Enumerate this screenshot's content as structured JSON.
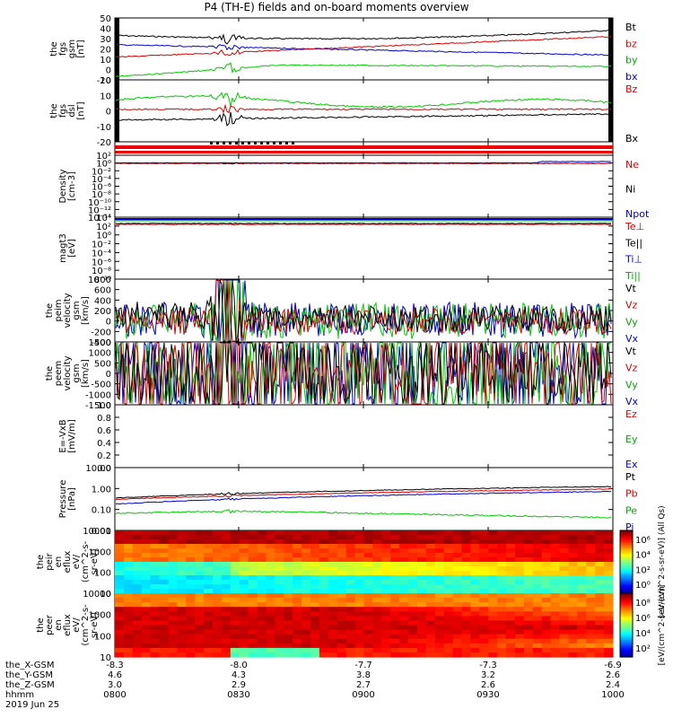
{
  "title": "P4 (TH-E) fields and on-board moments overview",
  "date_label": "2019 Jun 25",
  "time_axis": {
    "ticks": [
      "0800",
      "0830",
      "0900",
      "0930",
      "1000"
    ],
    "rows": [
      {
        "label": "the_X-GSM",
        "values": [
          "-8.3",
          "-8.0",
          "-7.7",
          "-7.3",
          "-6.9"
        ]
      },
      {
        "label": "the_Y-GSM",
        "values": [
          "4.6",
          "4.3",
          "3.8",
          "3.2",
          "2.6"
        ]
      },
      {
        "label": "the_Z-GSM",
        "values": [
          "3.0",
          "2.9",
          "2.7",
          "2.6",
          "2.4"
        ]
      },
      {
        "label": "hhmm",
        "values": [
          "0800",
          "0830",
          "0900",
          "0930",
          "1000"
        ]
      }
    ]
  },
  "colors": {
    "black": "#000000",
    "red": "#dd0000",
    "blue": "#0000cc",
    "green": "#00cc00"
  },
  "panels": [
    {
      "ylabel": [
        "the",
        "fgs",
        "gsm",
        "[nT]"
      ],
      "ticks": [
        "50",
        "40",
        "30",
        "20",
        "10",
        "0",
        "-10"
      ],
      "legend": [
        {
          "text": "Bt",
          "color": "#000000"
        },
        {
          "text": "bz",
          "color": "#dd0000"
        },
        {
          "text": "by",
          "color": "#00aa00"
        },
        {
          "text": "bx",
          "color": "#0000cc"
        }
      ]
    },
    {
      "ylabel": [
        "the",
        "fgs",
        "dsl",
        "[nT]"
      ],
      "ticks": [
        "20",
        "10",
        "0",
        "-10",
        "-20"
      ],
      "legend": [
        {
          "text": "Bz",
          "color": "#dd0000"
        },
        {
          "text": "Bx",
          "color": "#000000"
        }
      ]
    },
    {
      "ylabel": [
        "Density",
        "[cm-3]"
      ],
      "ticks": [
        "10²",
        "10⁰",
        "10⁻²",
        "10⁻⁴",
        "10⁻⁶",
        "10⁻⁸",
        "10⁻¹⁰",
        "10⁻¹²",
        "10⁻¹⁴"
      ],
      "legend": [
        {
          "text": "Ne",
          "color": "#dd0000"
        },
        {
          "text": "Ni",
          "color": "#000000"
        },
        {
          "text": "Npot",
          "color": "#0000cc"
        }
      ]
    },
    {
      "ylabel": [
        "magt3",
        "[eV]"
      ],
      "ticks": [
        "10⁴",
        "10²",
        "10⁰",
        "10⁻²",
        "10⁻⁴",
        "10⁻⁶",
        "10⁻⁸",
        "10⁻¹⁰"
      ],
      "legend": [
        {
          "text": "Te⊥",
          "color": "#dd0000"
        },
        {
          "text": "Te||",
          "color": "#000000"
        },
        {
          "text": "Ti⊥",
          "color": "#0000cc"
        },
        {
          "text": "Ti||",
          "color": "#00aa00"
        }
      ]
    },
    {
      "ylabel": [
        "the",
        "peim",
        "velocity",
        "gsm",
        "[km/s]"
      ],
      "ticks": [
        "800",
        "600",
        "400",
        "200",
        "0",
        "-200",
        "-400"
      ],
      "legend": [
        {
          "text": "Vt",
          "color": "#000000"
        },
        {
          "text": "Vz",
          "color": "#dd0000"
        },
        {
          "text": "Vy",
          "color": "#00aa00"
        },
        {
          "text": "Vx",
          "color": "#0000cc"
        }
      ]
    },
    {
      "ylabel": [
        "the",
        "peem",
        "velocity",
        "gsm",
        "[km/s]"
      ],
      "ticks": [
        "1500",
        "1000",
        "500",
        "0",
        "-500",
        "-1000",
        "-1500"
      ],
      "legend": [
        {
          "text": "Vt",
          "color": "#000000"
        },
        {
          "text": "Vz",
          "color": "#dd0000"
        },
        {
          "text": "Vy",
          "color": "#00aa00"
        },
        {
          "text": "Vx",
          "color": "#0000cc"
        }
      ]
    },
    {
      "ylabel": [
        "E=-VxB",
        "[mV/m]"
      ],
      "ticks": [
        "1.0",
        "0.8",
        "0.6",
        "0.4",
        "0.2",
        "0.0"
      ],
      "legend": [
        {
          "text": "Ez",
          "color": "#dd0000"
        },
        {
          "text": "Ey",
          "color": "#00aa00"
        },
        {
          "text": "Ex",
          "color": "#0000cc"
        }
      ]
    },
    {
      "ylabel": [
        "Pressure",
        "[nPa]"
      ],
      "ticks": [
        "10.00",
        "1.00",
        "0.10",
        "0.01"
      ],
      "legend": [
        {
          "text": "Pt",
          "color": "#000000"
        },
        {
          "text": "Pb",
          "color": "#dd0000"
        },
        {
          "text": "Pe",
          "color": "#00aa00"
        },
        {
          "text": "Pi",
          "color": "#0000cc"
        }
      ]
    },
    {
      "ylabel": [
        "the",
        "peir",
        "en",
        "eflux",
        "eV/",
        "(cm^2-s-",
        "sr-eV)"
      ],
      "ticks": [
        "10000",
        "1000",
        "100",
        "10"
      ],
      "legend": []
    },
    {
      "ylabel": [
        "the",
        "peer",
        "en",
        "eflux",
        "eV/",
        "(cm^2-s-",
        "sr-eV)"
      ],
      "ticks": [
        "10000",
        "1000",
        "100",
        "10"
      ],
      "legend": []
    }
  ],
  "colorbars": [
    {
      "ticks": [
        "10⁶",
        "10⁴",
        "10²",
        "10⁰"
      ],
      "label": "[eV/(cm^2-s-sr-eV)] (All Qs)"
    },
    {
      "ticks": [
        "10⁸",
        "10⁶",
        "10⁴",
        "10²"
      ],
      "label": "[eV/(cm^2-s-sr-eV)]"
    }
  ],
  "chart_data": {
    "type": "line",
    "title": "P4 (TH-E) fields and on-board moments overview",
    "x": [
      "0800",
      "0830",
      "0900",
      "0930",
      "1000"
    ],
    "series": [
      {
        "name": "Bt",
        "values": [
          33,
          28,
          27,
          31,
          37
        ]
      },
      {
        "name": "bz",
        "values": [
          15,
          18,
          20,
          25,
          32
        ]
      },
      {
        "name": "by",
        "values": [
          27,
          22,
          18,
          16,
          12
        ]
      },
      {
        "name": "bx",
        "values": [
          -7,
          0,
          1,
          2,
          3
        ]
      },
      {
        "name": "Pt",
        "values": [
          0.35,
          0.5,
          0.7,
          0.9,
          1.2
        ]
      },
      {
        "name": "Pb",
        "values": [
          0.3,
          0.4,
          0.5,
          0.7,
          0.95
        ]
      },
      {
        "name": "Pe",
        "values": [
          0.06,
          0.1,
          0.05,
          0.03,
          0.02
        ]
      },
      {
        "name": "Pi",
        "values": [
          0.18,
          0.3,
          0.45,
          0.6,
          0.7
        ]
      }
    ]
  }
}
